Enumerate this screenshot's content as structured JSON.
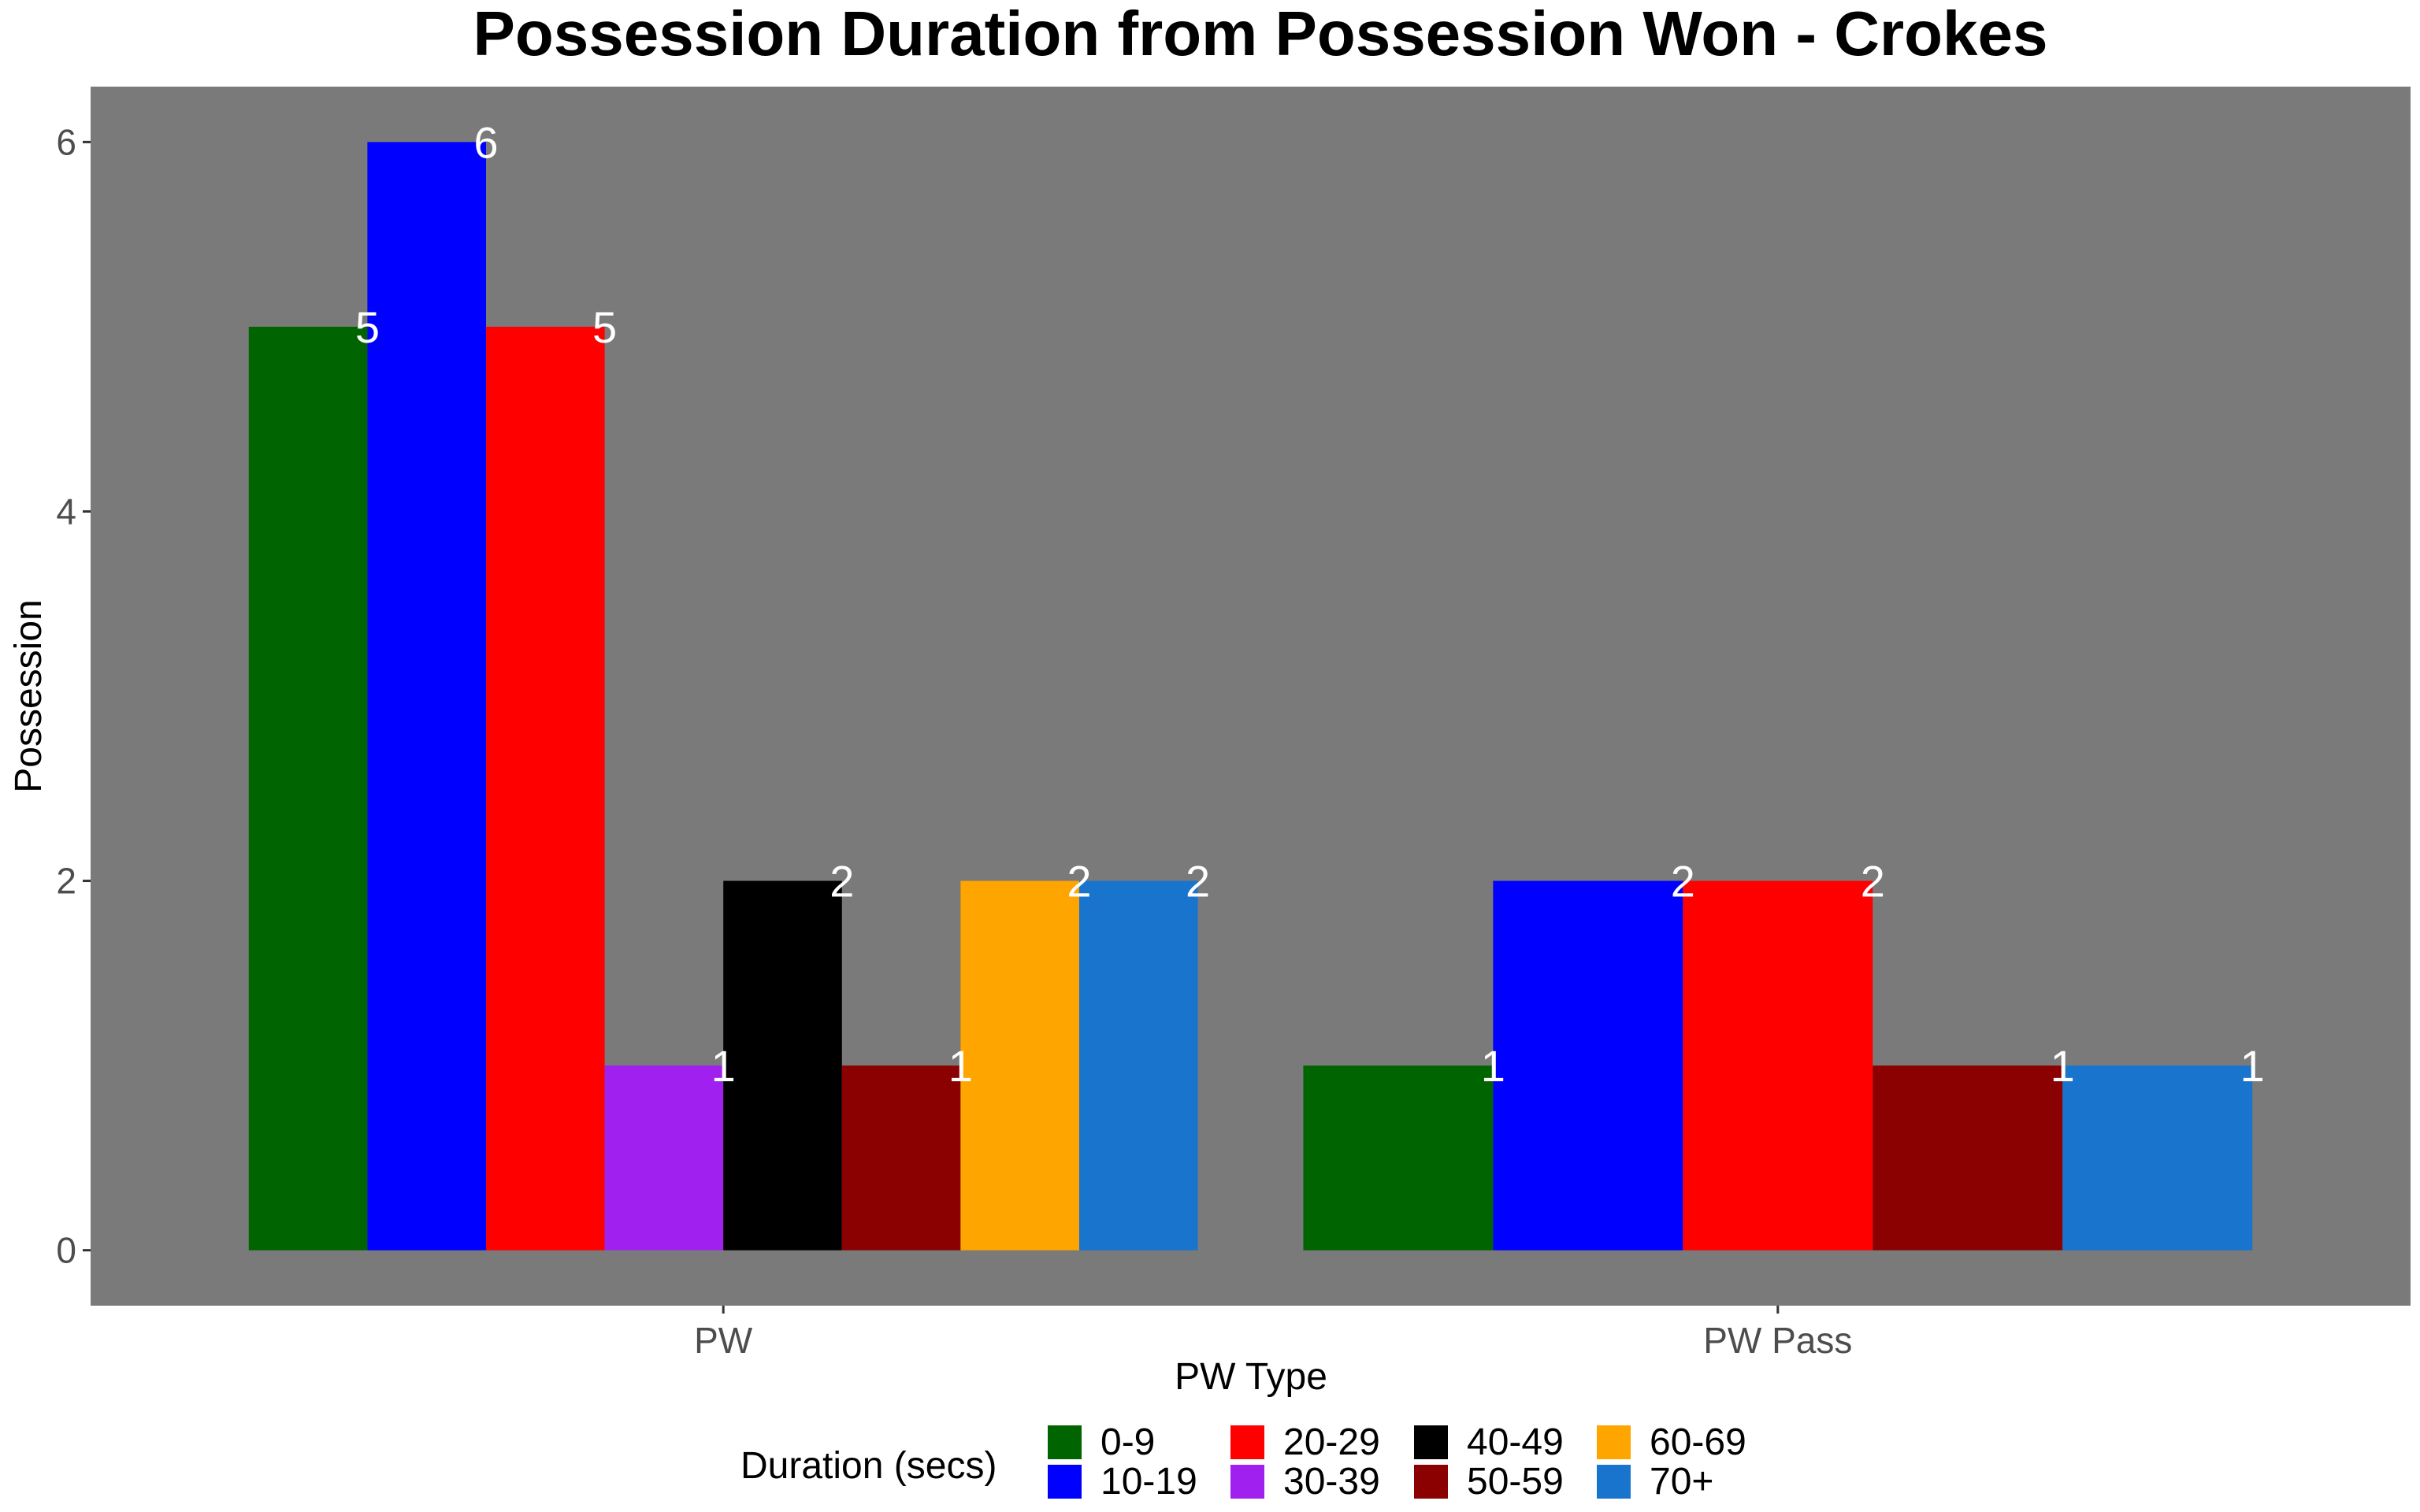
{
  "chart_data": {
    "type": "bar",
    "title": "Possession Duration from Possession Won - Crokes",
    "xlabel": "PW Type",
    "ylabel": "Possession",
    "ylim": [
      -0.3,
      6.3
    ],
    "yticks": [
      0,
      2,
      4,
      6
    ],
    "grid": false,
    "panel_background": "#7a7a7a",
    "legend": {
      "title": "Duration (secs)",
      "position": "bottom",
      "entries": [
        {
          "name": "0-9",
          "color": "#006400"
        },
        {
          "name": "10-19",
          "color": "#0000ff"
        },
        {
          "name": "20-29",
          "color": "#ff0000"
        },
        {
          "name": "30-39",
          "color": "#a020f0"
        },
        {
          "name": "40-49",
          "color": "#000000"
        },
        {
          "name": "50-59",
          "color": "#8b0000"
        },
        {
          "name": "60-69",
          "color": "#ffa500"
        },
        {
          "name": "70+",
          "color": "#1874cd"
        }
      ]
    },
    "categories": [
      {
        "name": "PW",
        "bars": [
          {
            "series": "0-9",
            "value": 5
          },
          {
            "series": "10-19",
            "value": 6
          },
          {
            "series": "20-29",
            "value": 5
          },
          {
            "series": "30-39",
            "value": 1
          },
          {
            "series": "40-49",
            "value": 2
          },
          {
            "series": "50-59",
            "value": 1
          },
          {
            "series": "60-69",
            "value": 2
          },
          {
            "series": "70+",
            "value": 2
          }
        ]
      },
      {
        "name": "PW Pass",
        "bars": [
          {
            "series": "0-9",
            "value": 1
          },
          {
            "series": "10-19",
            "value": 2
          },
          {
            "series": "20-29",
            "value": 2
          },
          {
            "series": "50-59",
            "value": 1
          },
          {
            "series": "70+",
            "value": 1
          }
        ]
      }
    ]
  }
}
